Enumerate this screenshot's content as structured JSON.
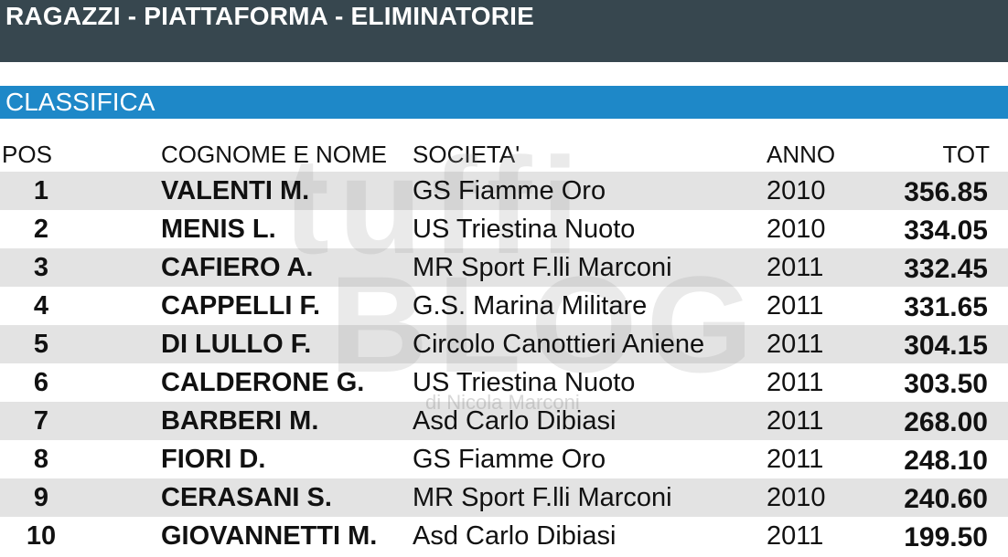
{
  "header": {
    "title": "RAGAZZI - PIATTAFORMA - ELIMINATORIE"
  },
  "section": {
    "title": "CLASSIFICA"
  },
  "watermark": {
    "line1": "tuffi",
    "line2": "BLOG",
    "sub": "di Nicola Marconi"
  },
  "colors": {
    "title_bar": "#37474f",
    "section_bar": "#1e88c8",
    "row_shade": "#e3e3e3"
  },
  "table": {
    "columns": {
      "pos": "POS",
      "name": "COGNOME E NOME",
      "soc": "SOCIETA'",
      "anno": "ANNO",
      "tot": "TOT"
    },
    "rows": [
      {
        "pos": "1",
        "name": "VALENTI M.",
        "soc": "GS Fiamme Oro",
        "anno": "2010",
        "tot": "356.85"
      },
      {
        "pos": "2",
        "name": "MENIS L.",
        "soc": "US Triestina Nuoto",
        "anno": "2010",
        "tot": "334.05"
      },
      {
        "pos": "3",
        "name": "CAFIERO A.",
        "soc": "MR Sport F.lli Marconi",
        "anno": "2011",
        "tot": "332.45"
      },
      {
        "pos": "4",
        "name": "CAPPELLI F.",
        "soc": "G.S. Marina Militare",
        "anno": "2011",
        "tot": "331.65"
      },
      {
        "pos": "5",
        "name": "DI LULLO F.",
        "soc": "Circolo Canottieri Aniene",
        "anno": "2011",
        "tot": "304.15"
      },
      {
        "pos": "6",
        "name": "CALDERONE G.",
        "soc": "US Triestina Nuoto",
        "anno": "2011",
        "tot": "303.50"
      },
      {
        "pos": "7",
        "name": "BARBERI M.",
        "soc": "Asd Carlo Dibiasi",
        "anno": "2011",
        "tot": "268.00"
      },
      {
        "pos": "8",
        "name": "FIORI D.",
        "soc": "GS Fiamme Oro",
        "anno": "2011",
        "tot": "248.10"
      },
      {
        "pos": "9",
        "name": "CERASANI S.",
        "soc": "MR Sport F.lli Marconi",
        "anno": "2010",
        "tot": "240.60"
      },
      {
        "pos": "10",
        "name": "GIOVANNETTI M.",
        "soc": "Asd Carlo Dibiasi",
        "anno": "2011",
        "tot": "199.50"
      }
    ]
  }
}
